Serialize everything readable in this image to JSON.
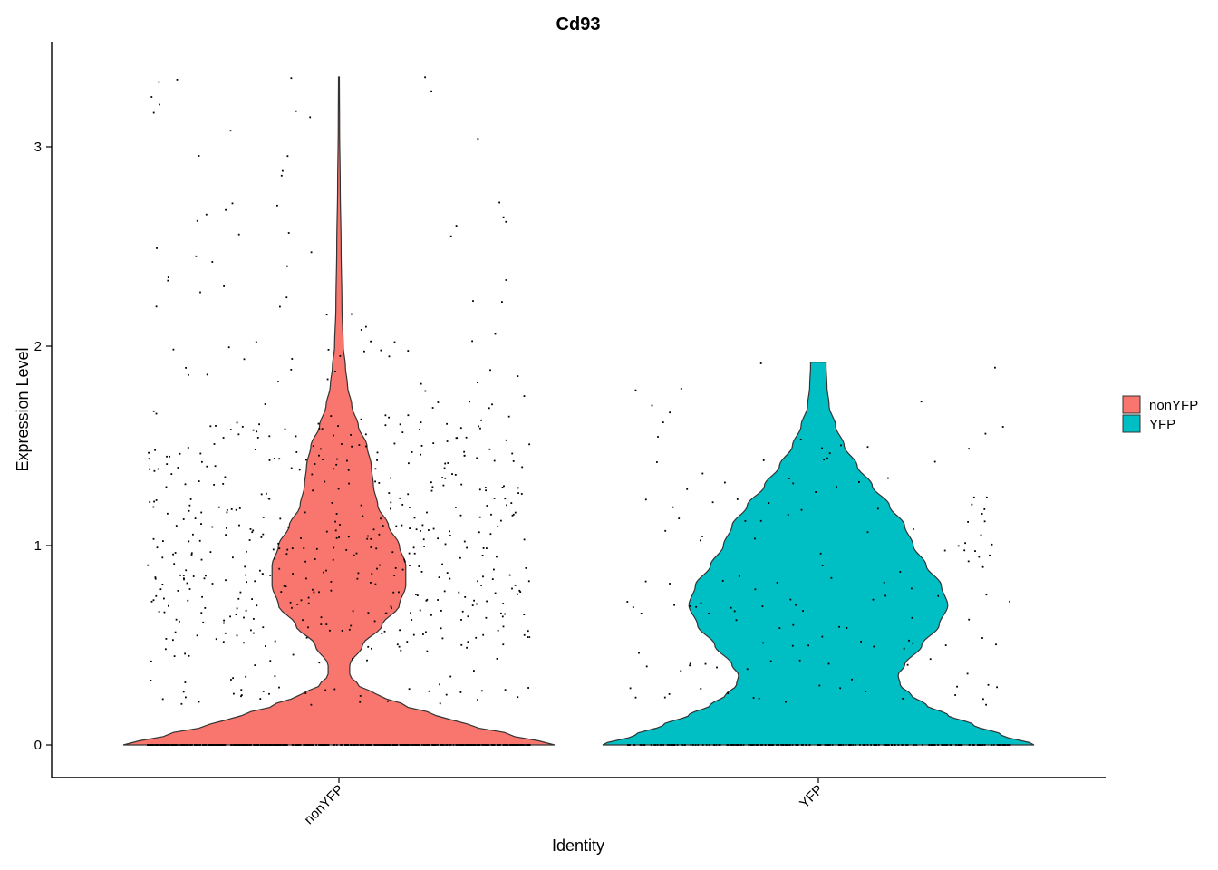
{
  "chart_data": {
    "type": "violin",
    "title": "Cd93",
    "xlabel": "Identity",
    "ylabel": "Expression Level",
    "ylim": [
      -0.16,
      3.5
    ],
    "yticks": [
      0,
      1,
      2,
      3
    ],
    "grid": false,
    "legend": {
      "placement": "right",
      "entries": [
        "nonYFP",
        "YFP"
      ]
    },
    "categories": [
      "nonYFP",
      "YFP"
    ],
    "series": [
      {
        "name": "nonYFP",
        "color": "#F8766D",
        "max": 3.35,
        "density": [
          [
            0.0,
            1.0
          ],
          [
            0.05,
            0.8
          ],
          [
            0.1,
            0.6
          ],
          [
            0.15,
            0.45
          ],
          [
            0.2,
            0.3
          ],
          [
            0.25,
            0.18
          ],
          [
            0.3,
            0.09
          ],
          [
            0.35,
            0.05
          ],
          [
            0.4,
            0.05
          ],
          [
            0.5,
            0.11
          ],
          [
            0.6,
            0.2
          ],
          [
            0.7,
            0.28
          ],
          [
            0.8,
            0.31
          ],
          [
            0.9,
            0.31
          ],
          [
            1.0,
            0.28
          ],
          [
            1.1,
            0.23
          ],
          [
            1.2,
            0.18
          ],
          [
            1.3,
            0.16
          ],
          [
            1.4,
            0.15
          ],
          [
            1.5,
            0.13
          ],
          [
            1.6,
            0.09
          ],
          [
            1.7,
            0.06
          ],
          [
            1.8,
            0.04
          ],
          [
            1.9,
            0.03
          ],
          [
            2.0,
            0.02
          ],
          [
            2.2,
            0.014
          ],
          [
            2.5,
            0.01
          ],
          [
            2.8,
            0.006
          ],
          [
            3.1,
            0.003
          ],
          [
            3.35,
            0.002
          ]
        ],
        "zeros": 480,
        "nonzero": 600
      },
      {
        "name": "YFP",
        "color": "#00BFC4",
        "max": 1.92,
        "density": [
          [
            0.0,
            1.0
          ],
          [
            0.05,
            0.85
          ],
          [
            0.1,
            0.72
          ],
          [
            0.15,
            0.6
          ],
          [
            0.2,
            0.5
          ],
          [
            0.25,
            0.43
          ],
          [
            0.3,
            0.38
          ],
          [
            0.35,
            0.37
          ],
          [
            0.4,
            0.4
          ],
          [
            0.5,
            0.48
          ],
          [
            0.6,
            0.56
          ],
          [
            0.7,
            0.6
          ],
          [
            0.8,
            0.57
          ],
          [
            0.9,
            0.5
          ],
          [
            1.0,
            0.44
          ],
          [
            1.1,
            0.4
          ],
          [
            1.2,
            0.33
          ],
          [
            1.3,
            0.25
          ],
          [
            1.4,
            0.18
          ],
          [
            1.5,
            0.12
          ],
          [
            1.6,
            0.08
          ],
          [
            1.7,
            0.05
          ],
          [
            1.8,
            0.04
          ],
          [
            1.9,
            0.036
          ],
          [
            1.92,
            0.036
          ]
        ],
        "zeros": 220,
        "nonzero": 150
      }
    ]
  }
}
